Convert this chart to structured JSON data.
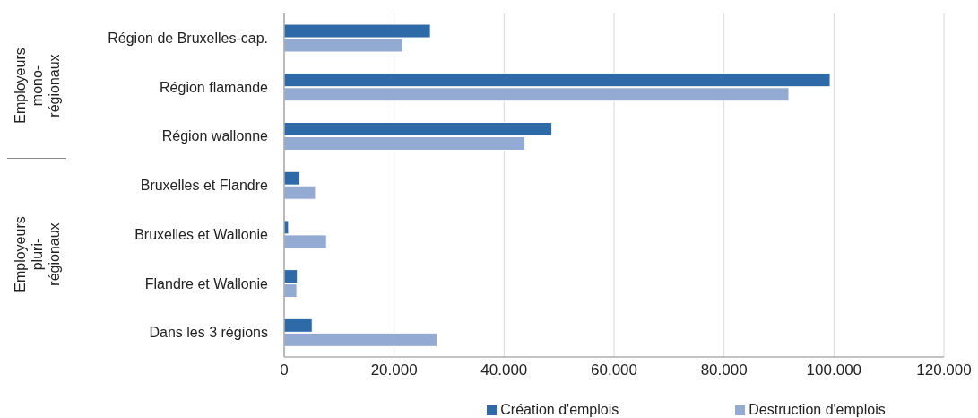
{
  "chart_data": {
    "type": "bar",
    "orientation": "horizontal",
    "categories": [
      "Région de Bruxelles-cap.",
      "Région flamande",
      "Région wallonne",
      "Bruxelles et Flandre",
      "Bruxelles et Wallonie",
      "Flandre et Wallonie",
      "Dans les 3 régions"
    ],
    "series": [
      {
        "name": "Création d'emplois",
        "color": "#2e6aa8",
        "values": [
          26600,
          99300,
          48700,
          2800,
          800,
          2400,
          5100
        ]
      },
      {
        "name": "Destruction d'emplois",
        "color": "#93abd3",
        "values": [
          21600,
          91800,
          43800,
          5700,
          7700,
          2300,
          27800
        ]
      }
    ],
    "xlim": [
      0,
      120000
    ],
    "xticks": [
      0,
      {
        "value": 20000,
        "label": "20.000"
      },
      {
        "value": 40000,
        "label": "40.000"
      },
      {
        "value": 60000,
        "label": "60.000"
      },
      {
        "value": 80000,
        "label": "80.000"
      },
      {
        "value": 100000,
        "label": "100.000"
      },
      {
        "value": 120000,
        "label": "120.000"
      }
    ],
    "annotations": [
      "Employeurs mono-régionaux",
      "Employeurs pluri-régionaux"
    ],
    "grid": "x",
    "legend": "bottom"
  }
}
